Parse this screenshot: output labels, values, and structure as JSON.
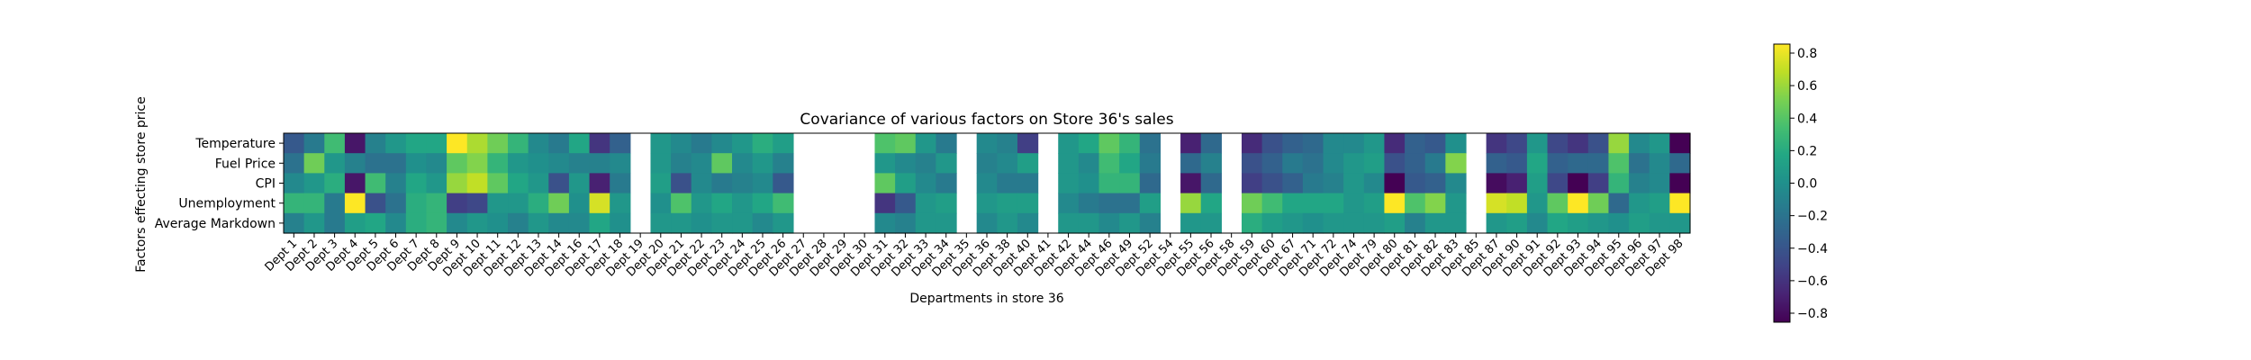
{
  "chart_data": {
    "type": "heatmap",
    "title": "Covariance of various factors on Store 36's sales",
    "xlabel": "Departments in store 36",
    "ylabel": "Factors effecting store price",
    "rows": [
      "Temperature",
      "Fuel Price",
      "CPI",
      "Unemployment",
      "Average Markdown"
    ],
    "columns": [
      "Dept 1",
      "Dept 2",
      "Dept 3",
      "Dept 4",
      "Dept 5",
      "Dept 6",
      "Dept 7",
      "Dept 8",
      "Dept 9",
      "Dept 10",
      "Dept 11",
      "Dept 12",
      "Dept 13",
      "Dept 14",
      "Dept 16",
      "Dept 17",
      "Dept 18",
      "Dept 19",
      "Dept 20",
      "Dept 21",
      "Dept 22",
      "Dept 23",
      "Dept 24",
      "Dept 25",
      "Dept 26",
      "Dept 27",
      "Dept 28",
      "Dept 29",
      "Dept 30",
      "Dept 31",
      "Dept 32",
      "Dept 33",
      "Dept 34",
      "Dept 35",
      "Dept 36",
      "Dept 38",
      "Dept 40",
      "Dept 41",
      "Dept 42",
      "Dept 44",
      "Dept 46",
      "Dept 49",
      "Dept 52",
      "Dept 54",
      "Dept 55",
      "Dept 56",
      "Dept 58",
      "Dept 59",
      "Dept 60",
      "Dept 67",
      "Dept 71",
      "Dept 72",
      "Dept 74",
      "Dept 79",
      "Dept 80",
      "Dept 81",
      "Dept 82",
      "Dept 83",
      "Dept 85",
      "Dept 87",
      "Dept 90",
      "Dept 91",
      "Dept 92",
      "Dept 93",
      "Dept 94",
      "Dept 95",
      "Dept 96",
      "Dept 97",
      "Dept 98"
    ],
    "values": [
      [
        -0.35,
        -0.15,
        0.3,
        -0.7,
        -0.1,
        0.05,
        0.15,
        0.15,
        0.85,
        0.6,
        0.45,
        0.25,
        -0.05,
        -0.15,
        0.15,
        -0.55,
        -0.3,
        null,
        0.05,
        -0.05,
        -0.15,
        -0.05,
        0.05,
        0.2,
        0.1,
        null,
        null,
        null,
        null,
        0.35,
        0.4,
        0.05,
        -0.15,
        null,
        -0.05,
        -0.1,
        -0.5,
        null,
        0.05,
        0.15,
        0.4,
        0.25,
        -0.2,
        null,
        -0.65,
        -0.25,
        null,
        -0.6,
        -0.4,
        -0.3,
        -0.25,
        -0.05,
        -0.05,
        0.05,
        -0.6,
        -0.3,
        -0.35,
        0.0,
        null,
        -0.55,
        -0.45,
        0.05,
        -0.45,
        -0.55,
        -0.4,
        0.55,
        -0.05,
        0.05,
        -0.8
      ],
      [
        -0.2,
        0.45,
        0.05,
        -0.1,
        -0.2,
        -0.2,
        0.0,
        -0.05,
        0.4,
        0.5,
        0.25,
        0.05,
        0.0,
        -0.05,
        -0.1,
        -0.1,
        -0.05,
        null,
        0.05,
        -0.1,
        -0.05,
        0.4,
        -0.05,
        0.05,
        -0.1,
        null,
        null,
        null,
        null,
        0.05,
        -0.05,
        -0.1,
        0.05,
        null,
        -0.1,
        -0.05,
        0.1,
        null,
        0.05,
        -0.05,
        0.3,
        0.15,
        -0.15,
        null,
        -0.25,
        -0.1,
        null,
        -0.4,
        -0.3,
        -0.15,
        -0.2,
        -0.05,
        0.05,
        0.1,
        -0.4,
        -0.3,
        -0.15,
        0.5,
        null,
        -0.3,
        -0.35,
        0.15,
        -0.3,
        -0.25,
        -0.25,
        0.35,
        -0.2,
        -0.05,
        -0.25
      ],
      [
        -0.05,
        0.05,
        0.2,
        -0.7,
        0.3,
        -0.1,
        0.15,
        0.05,
        0.55,
        0.65,
        0.4,
        0.15,
        0.05,
        -0.4,
        0.05,
        -0.65,
        -0.15,
        null,
        0.1,
        -0.4,
        -0.05,
        -0.15,
        -0.1,
        -0.05,
        -0.35,
        null,
        null,
        null,
        null,
        0.4,
        0.1,
        -0.05,
        -0.15,
        null,
        -0.05,
        -0.15,
        -0.15,
        null,
        0.05,
        0.0,
        0.25,
        0.25,
        -0.25,
        null,
        -0.7,
        -0.25,
        null,
        -0.5,
        -0.4,
        -0.3,
        -0.15,
        -0.1,
        0.05,
        -0.05,
        -0.85,
        -0.35,
        -0.3,
        -0.05,
        null,
        -0.75,
        -0.65,
        0.1,
        -0.45,
        -0.8,
        -0.5,
        0.25,
        -0.1,
        -0.05,
        -0.85
      ],
      [
        0.25,
        0.25,
        -0.15,
        0.85,
        -0.4,
        -0.2,
        0.2,
        0.25,
        -0.5,
        -0.45,
        0.05,
        0.05,
        0.2,
        0.45,
        0.0,
        0.7,
        0.05,
        null,
        0.0,
        0.35,
        0.05,
        0.15,
        0.05,
        0.15,
        0.3,
        null,
        null,
        null,
        null,
        -0.55,
        -0.35,
        0.05,
        0.1,
        null,
        0.05,
        0.1,
        0.1,
        null,
        -0.05,
        -0.15,
        -0.2,
        -0.2,
        0.1,
        null,
        0.55,
        0.15,
        null,
        0.45,
        0.3,
        0.15,
        0.15,
        0.15,
        0.05,
        0.1,
        0.85,
        0.35,
        0.5,
        0.05,
        null,
        0.7,
        0.65,
        0.05,
        0.4,
        0.8,
        0.45,
        -0.25,
        0.05,
        0.1,
        0.9
      ],
      [
        -0.1,
        0.05,
        -0.15,
        0.1,
        0.15,
        -0.05,
        0.2,
        0.25,
        -0.05,
        0.05,
        0.0,
        -0.1,
        0.05,
        -0.05,
        -0.05,
        0.15,
        0.0,
        null,
        0.05,
        0.05,
        0.0,
        0.05,
        0.05,
        -0.05,
        0.05,
        null,
        null,
        null,
        null,
        -0.05,
        -0.1,
        0.05,
        0.05,
        null,
        -0.05,
        0.05,
        -0.05,
        null,
        0.05,
        0.05,
        -0.05,
        0.05,
        -0.1,
        null,
        0.05,
        0.05,
        null,
        0.2,
        0.1,
        0.05,
        0.0,
        0.05,
        0.05,
        0.05,
        0.1,
        -0.1,
        0.05,
        0.05,
        null,
        0.05,
        0.1,
        -0.05,
        0.15,
        0.1,
        0.05,
        0.0,
        0.1,
        0.05,
        0.05
      ]
    ],
    "colormap": "viridis",
    "colorbar": {
      "min": -0.8,
      "max": 0.8,
      "ticks": [
        "0.8",
        "0.6",
        "0.4",
        "0.2",
        "0.0",
        "−0.2",
        "−0.4",
        "−0.6",
        "−0.8"
      ]
    }
  }
}
